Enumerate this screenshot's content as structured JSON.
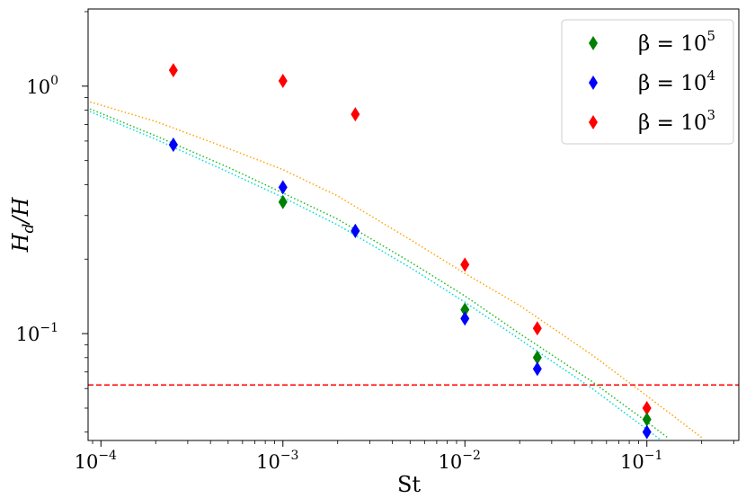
{
  "chart_data": {
    "type": "scatter",
    "x_scale": "log",
    "y_scale": "log",
    "xlabel": "St",
    "ylabel_main": "H",
    "ylabel_sub": "d",
    "ylabel_rest": "/H",
    "xlim": [
      8.5e-05,
      0.32
    ],
    "ylim": [
      0.037,
      2.05
    ],
    "x_ticks": [
      {
        "value": 0.0001,
        "base": "10",
        "exp": "−4"
      },
      {
        "value": 0.001,
        "base": "10",
        "exp": "−3"
      },
      {
        "value": 0.01,
        "base": "10",
        "exp": "−2"
      },
      {
        "value": 0.1,
        "base": "10",
        "exp": "−1"
      }
    ],
    "y_ticks": [
      {
        "value": 1,
        "base": "10",
        "exp": "0"
      },
      {
        "value": 0.1,
        "base": "10",
        "exp": "−1"
      }
    ],
    "series": [
      {
        "name": "β = 10^5",
        "legend_text": "β = 10",
        "legend_exp": "5",
        "color": "#008000",
        "x": [
          0.00025,
          0.001,
          0.0025,
          0.01,
          0.025,
          0.1
        ],
        "y": [
          0.58,
          0.34,
          0.26,
          0.125,
          0.08,
          0.045
        ]
      },
      {
        "name": "β = 10^4",
        "legend_text": "β = 10",
        "legend_exp": "4",
        "color": "#0000ff",
        "x": [
          0.00025,
          0.001,
          0.0025,
          0.01,
          0.025,
          0.1
        ],
        "y": [
          0.58,
          0.39,
          0.26,
          0.115,
          0.072,
          0.04
        ]
      },
      {
        "name": "β = 10^3",
        "legend_text": "β = 10",
        "legend_exp": "3",
        "color": "#ff0000",
        "x": [
          0.00025,
          0.001,
          0.0025,
          0.01,
          0.025,
          0.1
        ],
        "y": [
          1.16,
          1.05,
          0.77,
          0.19,
          0.105,
          0.05
        ]
      }
    ],
    "fit_curves": [
      {
        "name": "fit-orange",
        "color": "#ffa500",
        "x": [
          8e-05,
          0.0002,
          0.0005,
          0.001,
          0.002,
          0.005,
          0.01,
          0.02,
          0.05,
          0.1,
          0.2
        ],
        "y": [
          0.88,
          0.72,
          0.56,
          0.46,
          0.36,
          0.24,
          0.175,
          0.13,
          0.082,
          0.056,
          0.038
        ]
      },
      {
        "name": "fit-green",
        "color": "#22bb22",
        "x": [
          8e-05,
          0.0002,
          0.0005,
          0.001,
          0.002,
          0.005,
          0.01,
          0.02,
          0.05,
          0.1,
          0.13
        ],
        "y": [
          0.83,
          0.63,
          0.47,
          0.37,
          0.29,
          0.195,
          0.142,
          0.1,
          0.064,
          0.044,
          0.038
        ]
      },
      {
        "name": "fit-cyan",
        "color": "#00dddd",
        "x": [
          8e-05,
          0.0002,
          0.0005,
          0.001,
          0.002,
          0.005,
          0.01,
          0.02,
          0.05,
          0.1,
          0.12
        ],
        "y": [
          0.81,
          0.61,
          0.45,
          0.355,
          0.275,
          0.185,
          0.134,
          0.095,
          0.06,
          0.041,
          0.037
        ]
      }
    ],
    "reference_line": {
      "y": 0.062,
      "color": "#ff0000",
      "style": "dashed"
    },
    "legend_placement": "top-right",
    "grid": false
  }
}
